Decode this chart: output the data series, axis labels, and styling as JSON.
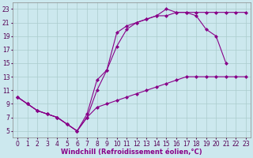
{
  "background_color": "#cce8ee",
  "grid_color": "#aacccc",
  "line_color": "#880088",
  "marker": "D",
  "markersize": 2,
  "linewidth": 0.8,
  "xlabel": "Windchill (Refroidissement éolien,°C)",
  "xlabel_fontsize": 6,
  "tick_fontsize": 5.5,
  "xlim": [
    -0.5,
    23.5
  ],
  "ylim": [
    4,
    24
  ],
  "yticks": [
    5,
    7,
    9,
    11,
    13,
    15,
    17,
    19,
    21,
    23
  ],
  "xticks": [
    0,
    1,
    2,
    3,
    4,
    5,
    6,
    7,
    8,
    9,
    10,
    11,
    12,
    13,
    14,
    15,
    16,
    17,
    18,
    19,
    20,
    21,
    22,
    23
  ],
  "line1_x": [
    0,
    1,
    2,
    3,
    4,
    5,
    6,
    7,
    8,
    9,
    10,
    11,
    12,
    13,
    14,
    15,
    16,
    17,
    18,
    19,
    20,
    21,
    22,
    23
  ],
  "line1_y": [
    10,
    9,
    8,
    7.5,
    7,
    6,
    5,
    7,
    11,
    14,
    17.5,
    20,
    21,
    21.5,
    22,
    22,
    22.5,
    22.5,
    22.5,
    22.5,
    22.5,
    22.5,
    22.5,
    22.5
  ],
  "line2_x": [
    0,
    1,
    2,
    3,
    4,
    5,
    6,
    7,
    8,
    9,
    10,
    11,
    12,
    13,
    14,
    15,
    16,
    17,
    18,
    19,
    20,
    21
  ],
  "line2_y": [
    10,
    9,
    8,
    7.5,
    7,
    6,
    5,
    7.5,
    12.5,
    14,
    19.5,
    20.5,
    21,
    21.5,
    22,
    23,
    22.5,
    22.5,
    22,
    20,
    19,
    15
  ],
  "line3_x": [
    0,
    1,
    2,
    3,
    4,
    5,
    6,
    7,
    8,
    9,
    10,
    11,
    12,
    13,
    14,
    15,
    16,
    17,
    18,
    19,
    20,
    21,
    22,
    23
  ],
  "line3_y": [
    10,
    9,
    8,
    7.5,
    7,
    6,
    5,
    7,
    8.5,
    9,
    9.5,
    10,
    10.5,
    11,
    11.5,
    12,
    12.5,
    13,
    13,
    13,
    13,
    13,
    13,
    13
  ]
}
